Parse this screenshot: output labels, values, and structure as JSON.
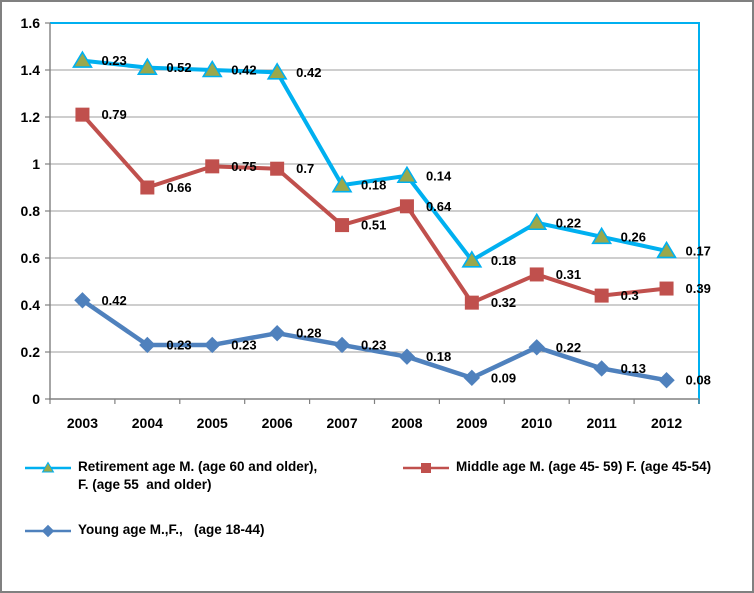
{
  "chart_data": {
    "type": "line",
    "title": "",
    "xlabel": "",
    "ylabel": "",
    "grid": true,
    "legend_position": "bottom",
    "ylim": [
      0,
      1.6
    ],
    "ytick_labels": [
      "1.6",
      "1.4",
      "1.2",
      "1",
      "0.8",
      "0.6",
      "0.4",
      "0.2",
      "0"
    ],
    "categories": [
      "2003",
      "2004",
      "2005",
      "2006",
      "2007",
      "2008",
      "2009",
      "2010",
      "2011",
      "2012"
    ],
    "series": [
      {
        "name": "Retirement age M. (age 60 and older), F. (age 55  and older)",
        "legend_lines": [
          "Retirement age M. (age 60 and older),",
          "F. (age 55  and older)"
        ],
        "marker": "triangle",
        "line_color": "#00b0f0",
        "marker_fill": "#9aa84c",
        "marker_stroke": "#00b0f0",
        "values": [
          1.44,
          1.41,
          1.4,
          1.39,
          0.91,
          0.95,
          0.59,
          0.75,
          0.69,
          0.63
        ],
        "point_labels": [
          "0.23",
          "0.52",
          "0.42",
          "0.42",
          "0.18",
          "0.14",
          "0.18",
          "0.22",
          "0.26",
          "0.17"
        ]
      },
      {
        "name": "Middle age M. (age 45- 59) F. (age 45-54)",
        "legend_lines": [
          "Middle age M. (age 45- 59) F. (age 45-54)"
        ],
        "marker": "square",
        "line_color": "#c0504d",
        "marker_fill": "#c0504d",
        "marker_stroke": "#c0504d",
        "values": [
          1.21,
          0.9,
          0.99,
          0.98,
          0.74,
          0.82,
          0.41,
          0.53,
          0.44,
          0.47
        ],
        "point_labels": [
          "0.79",
          "0.66",
          "0.75",
          "0.7",
          "0.51",
          "0.64",
          "0.32",
          "0.31",
          "0.3",
          "0.39"
        ]
      },
      {
        "name": "Young age M.,F.,   (age 18-44)",
        "legend_lines": [
          "Young age M.,F.,   (age 18-44)"
        ],
        "marker": "diamond",
        "line_color": "#4f81bd",
        "marker_fill": "#4f81bd",
        "marker_stroke": "#4f81bd",
        "values": [
          0.42,
          0.23,
          0.23,
          0.28,
          0.23,
          0.18,
          0.09,
          0.22,
          0.13,
          0.08
        ],
        "point_labels": [
          "0.42",
          "0.23",
          "0.23",
          "0.28",
          "0.23",
          "0.18",
          "0.09",
          "0.22",
          "0.13",
          "0.08"
        ]
      }
    ],
    "colors": {
      "gridline": "#9d9d9d",
      "axis": "#808080",
      "plot_border_accent": "#00b0f0",
      "label_text": "#000000"
    }
  }
}
